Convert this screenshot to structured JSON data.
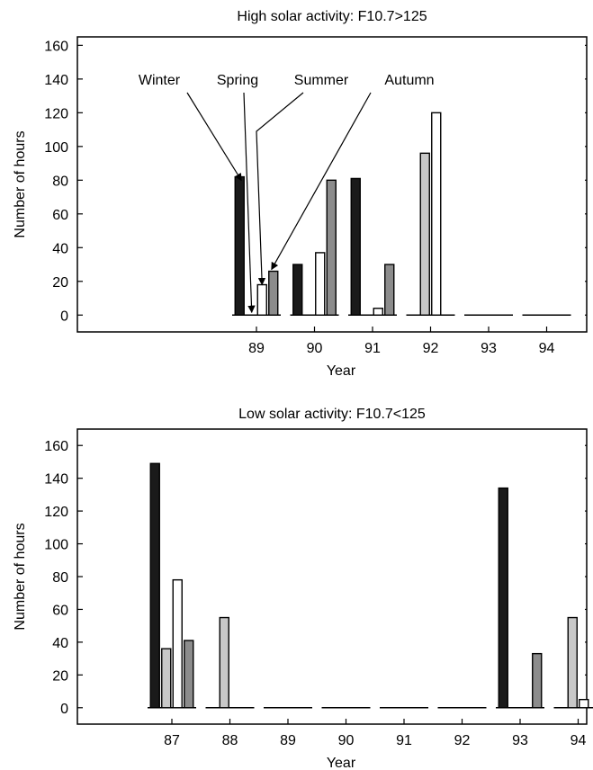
{
  "chart_data": [
    {
      "type": "bar",
      "title": "High solar activity: F10.7>125",
      "xlabel": "Year",
      "ylabel": "Number of hours",
      "ylim": [
        -10,
        165
      ],
      "yticks": [
        0,
        20,
        40,
        60,
        80,
        100,
        120,
        140,
        160
      ],
      "categories": [
        "89",
        "90",
        "91",
        "92",
        "93",
        "94"
      ],
      "series": [
        {
          "name": "Winter",
          "color": "#1a1a1a",
          "values": [
            82,
            30,
            81,
            0,
            0,
            0
          ]
        },
        {
          "name": "Spring",
          "color": "#c8c8c8",
          "values": [
            0,
            0,
            0,
            96,
            0,
            0
          ]
        },
        {
          "name": "Summer",
          "color": "#ffffff",
          "values": [
            18,
            37,
            4,
            120,
            0,
            0
          ]
        },
        {
          "name": "Autumn",
          "color": "#8c8c8c",
          "values": [
            26,
            80,
            30,
            0,
            0,
            0
          ]
        }
      ],
      "legend": "annotation arrows pointing to the 89 bars",
      "grid": false
    },
    {
      "type": "bar",
      "title": "Low solar activity: F10.7<125",
      "xlabel": "Year",
      "ylabel": "Number of hours",
      "ylim": [
        -10,
        170
      ],
      "yticks": [
        0,
        20,
        40,
        60,
        80,
        100,
        120,
        140,
        160
      ],
      "categories": [
        "87",
        "88",
        "89",
        "90",
        "91",
        "92",
        "93",
        "94"
      ],
      "series": [
        {
          "name": "Winter",
          "color": "#1a1a1a",
          "values": [
            149,
            0,
            0,
            0,
            0,
            0,
            134,
            0
          ]
        },
        {
          "name": "Spring",
          "color": "#c8c8c8",
          "values": [
            36,
            55,
            0,
            0,
            0,
            0,
            0,
            55
          ]
        },
        {
          "name": "Summer",
          "color": "#ffffff",
          "values": [
            78,
            0,
            0,
            0,
            0,
            0,
            0,
            5
          ]
        },
        {
          "name": "Autumn",
          "color": "#8c8c8c",
          "values": [
            41,
            0,
            0,
            0,
            0,
            0,
            33,
            0
          ]
        }
      ],
      "grid": false
    }
  ]
}
